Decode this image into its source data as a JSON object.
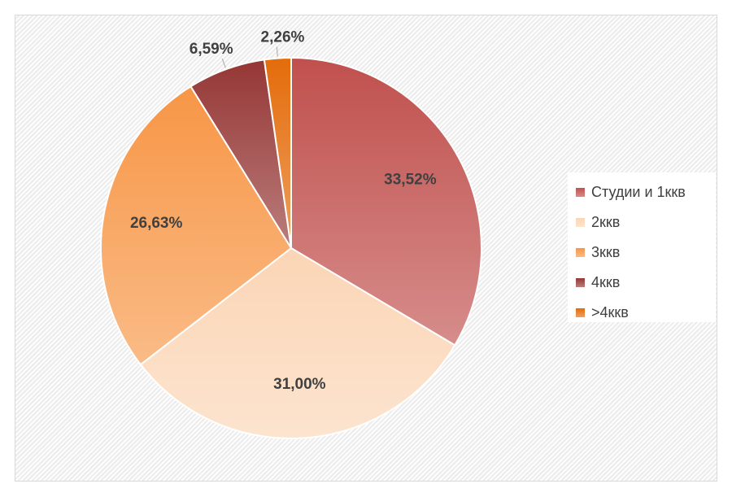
{
  "chart_data": {
    "type": "pie",
    "categories": [
      "Студии и 1ккв",
      "2ккв",
      "3ккв",
      "4ккв",
      ">4ккв"
    ],
    "values": [
      33.52,
      31.0,
      26.63,
      6.59,
      2.26
    ],
    "data_labels": [
      "33,52%",
      "31,00%",
      "26,63%",
      "6,59%",
      "2,26%"
    ],
    "colors": [
      "#c0504d",
      "#fbd5b5",
      "#f79646",
      "#953735",
      "#e46c0a"
    ],
    "legend_position": "right",
    "start_angle": "12 o'clock",
    "direction": "clockwise"
  }
}
